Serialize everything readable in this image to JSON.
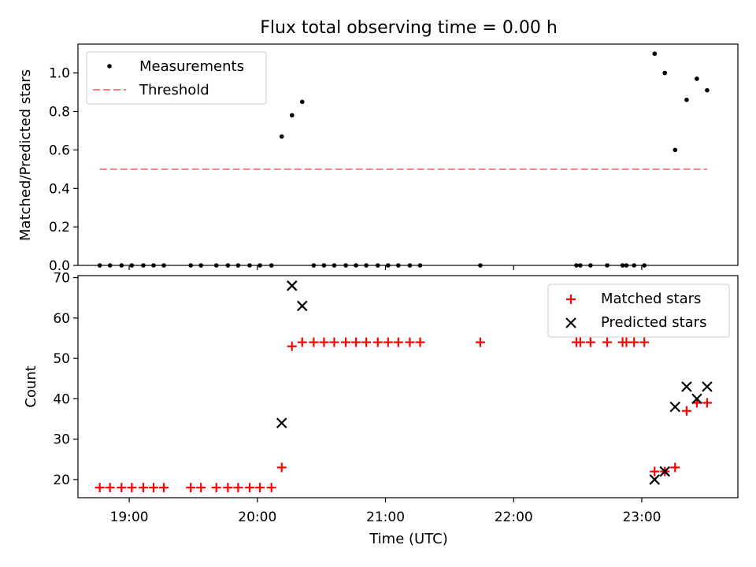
{
  "figure": {
    "title": "Flux total observing time = 0.00 h"
  },
  "chart_data": [
    {
      "type": "scatter",
      "title": "Flux total observing time = 0.00 h",
      "ylabel": "Matched/Predicted stars",
      "xlabel": "",
      "xlim": [
        18.6,
        23.75
      ],
      "ylim": [
        0,
        1.15
      ],
      "xticks": [
        19,
        20,
        21,
        22,
        23
      ],
      "yticks": [
        0.0,
        0.2,
        0.4,
        0.6,
        0.8,
        1.0
      ],
      "ytick_labels": [
        "0.0",
        "0.2",
        "0.4",
        "0.6",
        "0.8",
        "1.0"
      ],
      "legend": {
        "position": "top-left",
        "entries": [
          "Measurements",
          "Threshold"
        ]
      },
      "series": [
        {
          "name": "Measurements",
          "marker": "dot",
          "color": "#000000",
          "points": [
            [
              18.77,
              0
            ],
            [
              18.85,
              0
            ],
            [
              18.94,
              0
            ],
            [
              19.02,
              0
            ],
            [
              19.11,
              0
            ],
            [
              19.19,
              0
            ],
            [
              19.27,
              0
            ],
            [
              19.48,
              0
            ],
            [
              19.56,
              0
            ],
            [
              19.68,
              0
            ],
            [
              19.77,
              0
            ],
            [
              19.85,
              0
            ],
            [
              19.94,
              0
            ],
            [
              20.02,
              0
            ],
            [
              20.11,
              0
            ],
            [
              20.19,
              0.67
            ],
            [
              20.27,
              0.78
            ],
            [
              20.35,
              0.85
            ],
            [
              20.44,
              0
            ],
            [
              20.52,
              0
            ],
            [
              20.6,
              0
            ],
            [
              20.69,
              0
            ],
            [
              20.77,
              0
            ],
            [
              20.85,
              0
            ],
            [
              20.94,
              0
            ],
            [
              21.02,
              0
            ],
            [
              21.1,
              0
            ],
            [
              21.19,
              0
            ],
            [
              21.27,
              0
            ],
            [
              21.74,
              0
            ],
            [
              22.49,
              0
            ],
            [
              22.52,
              0
            ],
            [
              22.6,
              0
            ],
            [
              22.73,
              0
            ],
            [
              22.85,
              0
            ],
            [
              22.88,
              0
            ],
            [
              22.94,
              0
            ],
            [
              23.02,
              0
            ],
            [
              23.1,
              1.1
            ],
            [
              23.18,
              1.0
            ],
            [
              23.26,
              0.6
            ],
            [
              23.35,
              0.86
            ],
            [
              23.43,
              0.97
            ],
            [
              23.51,
              0.91
            ]
          ]
        },
        {
          "name": "Threshold",
          "style": "dashed",
          "color": "#ff7f7f",
          "points": [
            [
              18.77,
              0.5
            ],
            [
              23.51,
              0.5
            ]
          ]
        }
      ]
    },
    {
      "type": "scatter",
      "title": "",
      "xlabel": "Time (UTC)",
      "ylabel": "Count",
      "xlim": [
        18.6,
        23.75
      ],
      "ylim": [
        15.5,
        70.5
      ],
      "xticks": [
        19,
        20,
        21,
        22,
        23
      ],
      "xtick_labels": [
        "19:00",
        "20:00",
        "21:00",
        "22:00",
        "23:00"
      ],
      "yticks": [
        20,
        30,
        40,
        50,
        60,
        70
      ],
      "ytick_labels": [
        "20",
        "30",
        "40",
        "50",
        "60",
        "70"
      ],
      "legend": {
        "position": "top-right",
        "entries": [
          "Matched stars",
          "Predicted stars"
        ]
      },
      "series": [
        {
          "name": "Matched stars",
          "marker": "plus",
          "color": "#ff0000",
          "points": [
            [
              18.77,
              18
            ],
            [
              18.85,
              18
            ],
            [
              18.94,
              18
            ],
            [
              19.02,
              18
            ],
            [
              19.11,
              18
            ],
            [
              19.19,
              18
            ],
            [
              19.27,
              18
            ],
            [
              19.48,
              18
            ],
            [
              19.56,
              18
            ],
            [
              19.68,
              18
            ],
            [
              19.77,
              18
            ],
            [
              19.85,
              18
            ],
            [
              19.94,
              18
            ],
            [
              20.02,
              18
            ],
            [
              20.11,
              18
            ],
            [
              20.19,
              23
            ],
            [
              20.27,
              53
            ],
            [
              20.35,
              54
            ],
            [
              20.44,
              54
            ],
            [
              20.52,
              54
            ],
            [
              20.6,
              54
            ],
            [
              20.69,
              54
            ],
            [
              20.77,
              54
            ],
            [
              20.85,
              54
            ],
            [
              20.94,
              54
            ],
            [
              21.02,
              54
            ],
            [
              21.1,
              54
            ],
            [
              21.19,
              54
            ],
            [
              21.27,
              54
            ],
            [
              21.74,
              54
            ],
            [
              22.49,
              54
            ],
            [
              22.52,
              54
            ],
            [
              22.6,
              54
            ],
            [
              22.73,
              54
            ],
            [
              22.85,
              54
            ],
            [
              22.88,
              54
            ],
            [
              22.94,
              54
            ],
            [
              23.02,
              54
            ],
            [
              23.1,
              22
            ],
            [
              23.18,
              22
            ],
            [
              23.26,
              23
            ],
            [
              23.35,
              37
            ],
            [
              23.43,
              39
            ],
            [
              23.51,
              39
            ]
          ]
        },
        {
          "name": "Predicted stars",
          "marker": "x",
          "color": "#000000",
          "points": [
            [
              20.19,
              34
            ],
            [
              20.27,
              68
            ],
            [
              20.35,
              63
            ],
            [
              23.1,
              20
            ],
            [
              23.18,
              22
            ],
            [
              23.26,
              38
            ],
            [
              23.35,
              43
            ],
            [
              23.43,
              40
            ],
            [
              23.51,
              43
            ]
          ]
        }
      ]
    }
  ]
}
